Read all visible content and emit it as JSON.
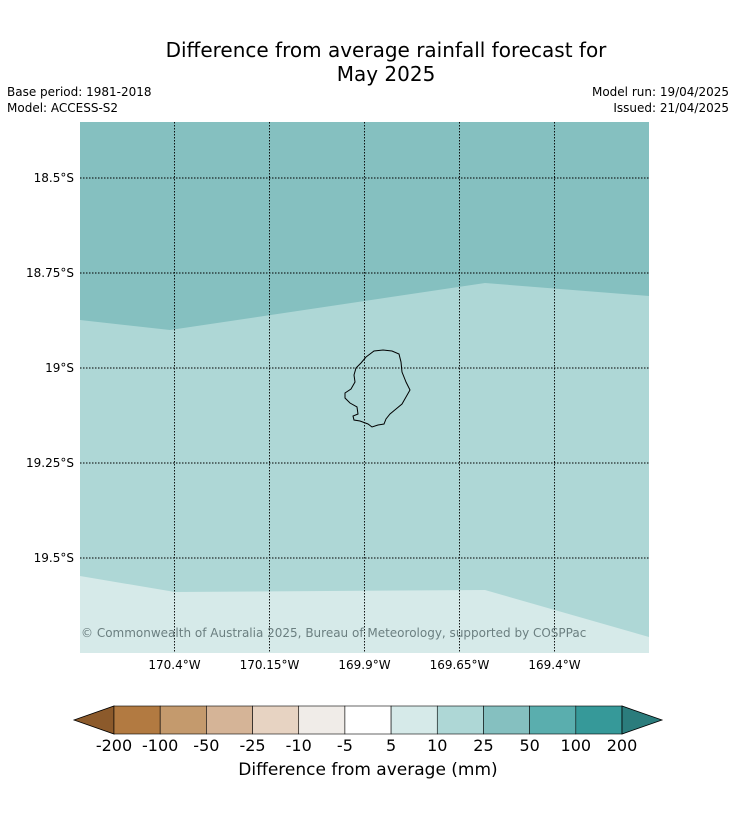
{
  "title": {
    "line1": "Difference from average rainfall forecast for",
    "line2": "May 2025"
  },
  "meta": {
    "base_period": "Base period: 1981-2018",
    "model": "Model: ACCESS-S2",
    "model_run": "Model run: 19/04/2025",
    "issued": "Issued: 21/04/2025"
  },
  "map": {
    "lat_labels": [
      "18.5°S",
      "18.75°S",
      "19°S",
      "19.25°S",
      "19.5°S"
    ],
    "lon_labels": [
      "170.4°W",
      "170.15°W",
      "169.9°W",
      "169.65°W",
      "169.4°W"
    ],
    "copyright": "© Commonwealth of Australia 2025, Bureau of Meteorology, supported by COSPPac",
    "colors": {
      "band_25_50": "#85c0c0",
      "band_10_25": "#aed7d6",
      "band_5_10": "#d6eae9",
      "coastline": "#000000",
      "grid": "#000000"
    }
  },
  "colorbar": {
    "label": "Difference from average (mm)",
    "ticks": [
      "-200",
      "-100",
      "-50",
      "-25",
      "-10",
      "-5",
      "5",
      "10",
      "25",
      "50",
      "100",
      "200"
    ],
    "low_extend_color": "#8c5a2b",
    "colors": [
      "#b27a41",
      "#c49a6d",
      "#d5b497",
      "#e7d3c2",
      "#f0ece8",
      "#ffffff",
      "#d6eae9",
      "#aed7d6",
      "#85c0c0",
      "#5aaeae",
      "#369999"
    ],
    "high_extend_color": "#2b7c7c"
  }
}
